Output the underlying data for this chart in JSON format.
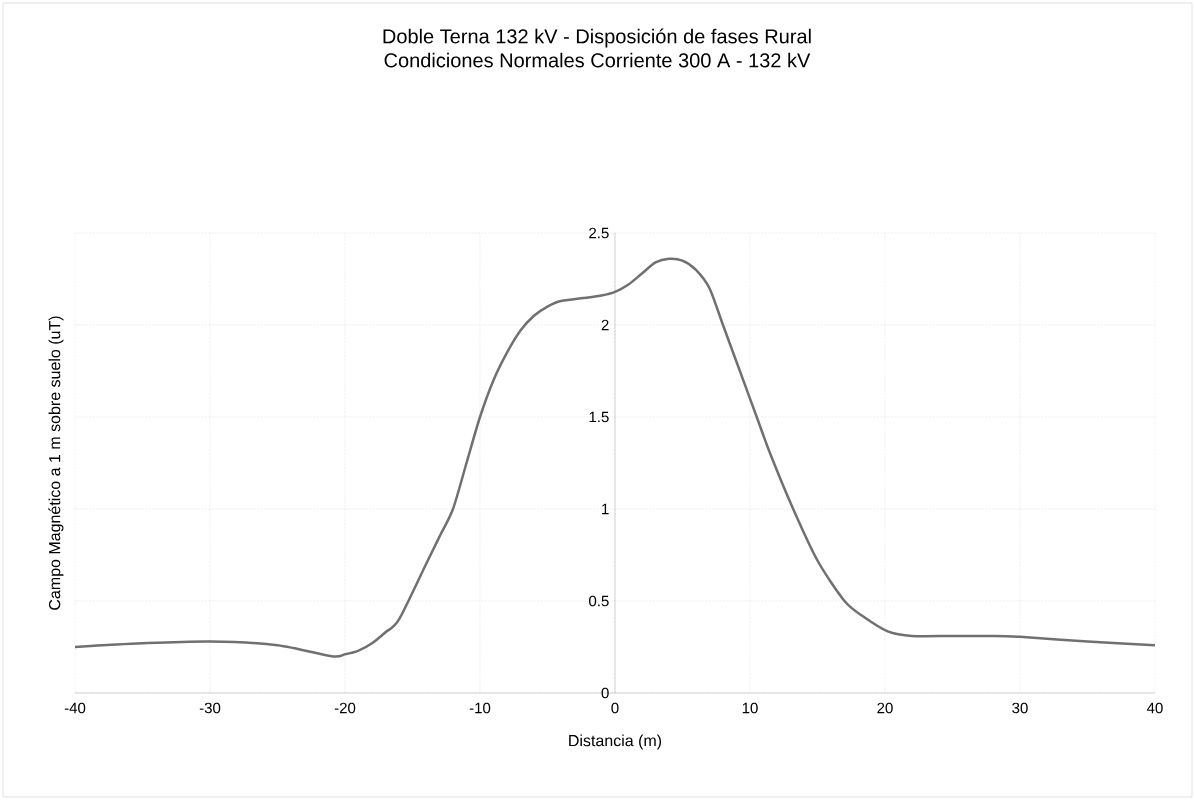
{
  "chart_data": {
    "type": "line",
    "title": "Doble Terna 132 kV - Disposición de fases Rural",
    "subtitle": "Condiciones Normales  Corriente 300 A - 132 kV",
    "xlabel": "Distancia (m)",
    "ylabel": "Campo Magnético a 1 m sobre suelo (uT)",
    "x": [
      -40,
      -35,
      -30,
      -25,
      -21,
      -20,
      -19,
      -18,
      -17,
      -16,
      -14,
      -13,
      -12,
      -11,
      -10,
      -9,
      -8,
      -7,
      -6,
      -5,
      -4,
      -2,
      -1,
      0,
      1,
      2,
      3,
      4,
      5,
      6,
      7,
      8,
      9,
      10.5,
      11.5,
      13.2,
      15,
      17,
      18.5,
      20.2,
      22,
      25,
      28,
      30,
      35,
      40
    ],
    "series": [
      {
        "color": "#707070",
        "values": [
          0.25,
          0.27,
          0.28,
          0.26,
          0.2,
          0.21,
          0.23,
          0.27,
          0.33,
          0.4,
          0.7,
          0.85,
          1.0,
          1.25,
          1.5,
          1.7,
          1.85,
          1.97,
          2.05,
          2.1,
          2.13,
          2.15,
          2.16,
          2.18,
          2.22,
          2.28,
          2.34,
          2.36,
          2.35,
          2.3,
          2.2,
          2.0,
          1.8,
          1.5,
          1.3,
          1.0,
          0.72,
          0.5,
          0.41,
          0.335,
          0.31,
          0.31,
          0.31,
          0.305,
          0.28,
          0.26
        ]
      }
    ],
    "xlim": [
      -40,
      40
    ],
    "ylim": [
      0,
      2.5
    ],
    "xticks": [
      -40,
      -30,
      -20,
      -10,
      0,
      10,
      20,
      30,
      40
    ],
    "yticks": [
      0,
      0.5,
      1,
      1.5,
      2,
      2.5
    ],
    "grid": true,
    "marker": "none",
    "line_style": "solid"
  }
}
